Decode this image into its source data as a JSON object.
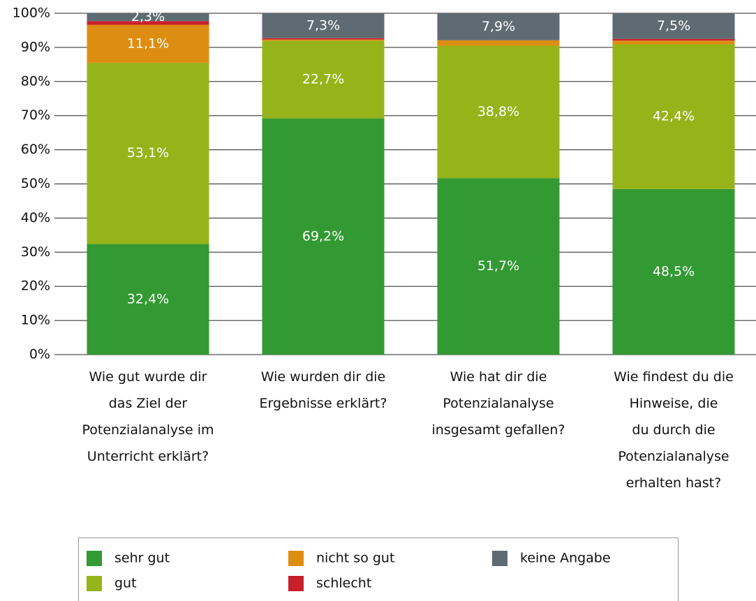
{
  "chart_data": {
    "type": "stacked_bar",
    "categories": [
      "Wie gut wurde dir\ndas Ziel der\nPotenzialanalyse im\nUnterricht erklärt?",
      "Wie wurden dir die\nErgebnisse erklärt?",
      "Wie hat dir die\nPotenzialanalyse\ninsgesamt gefallen?",
      "Wie findest du die\nHinweise, die\ndu durch die\nPotenzialanalyse\nerhalten hast?"
    ],
    "series": [
      {
        "name": "sehr gut",
        "color": "#339933",
        "values": [
          32.4,
          69.2,
          51.7,
          48.5
        ],
        "value_labels": [
          "32,4%",
          "69,2%",
          "51,7%",
          "48,5%"
        ]
      },
      {
        "name": "gut",
        "color": "#97b31a",
        "values": [
          53.1,
          22.7,
          38.8,
          42.4
        ],
        "value_labels": [
          "53,1%",
          "22,7%",
          "38,8%",
          "42,4%"
        ]
      },
      {
        "name": "nicht so gut",
        "color": "#dd8e12",
        "values": [
          11.1,
          0.4,
          1.6,
          1.1
        ],
        "value_labels": [
          "11,1%",
          null,
          null,
          null
        ]
      },
      {
        "name": "schlecht",
        "color": "#c8202a",
        "values": [
          1.1,
          0.4,
          0,
          0.5
        ],
        "value_labels": [
          null,
          null,
          null,
          null
        ]
      },
      {
        "name": "keine Angabe",
        "color": "#5f6b73",
        "values": [
          2.3,
          7.3,
          7.9,
          7.5
        ],
        "value_labels": [
          "2,3%",
          "7,3%",
          "7,9%",
          "7,5%"
        ]
      }
    ],
    "ylim": [
      0,
      100
    ],
    "yticks": [
      {
        "value": 0,
        "label": "0%"
      },
      {
        "value": 10,
        "label": "10%"
      },
      {
        "value": 20,
        "label": "20%"
      },
      {
        "value": 30,
        "label": "30%"
      },
      {
        "value": 40,
        "label": "40%"
      },
      {
        "value": 50,
        "label": "50%"
      },
      {
        "value": 60,
        "label": "60%"
      },
      {
        "value": 70,
        "label": "70%"
      },
      {
        "value": 80,
        "label": "80%"
      },
      {
        "value": 90,
        "label": "90%"
      },
      {
        "value": 100,
        "label": "100%"
      }
    ],
    "grid": true,
    "legend": "bottom"
  }
}
